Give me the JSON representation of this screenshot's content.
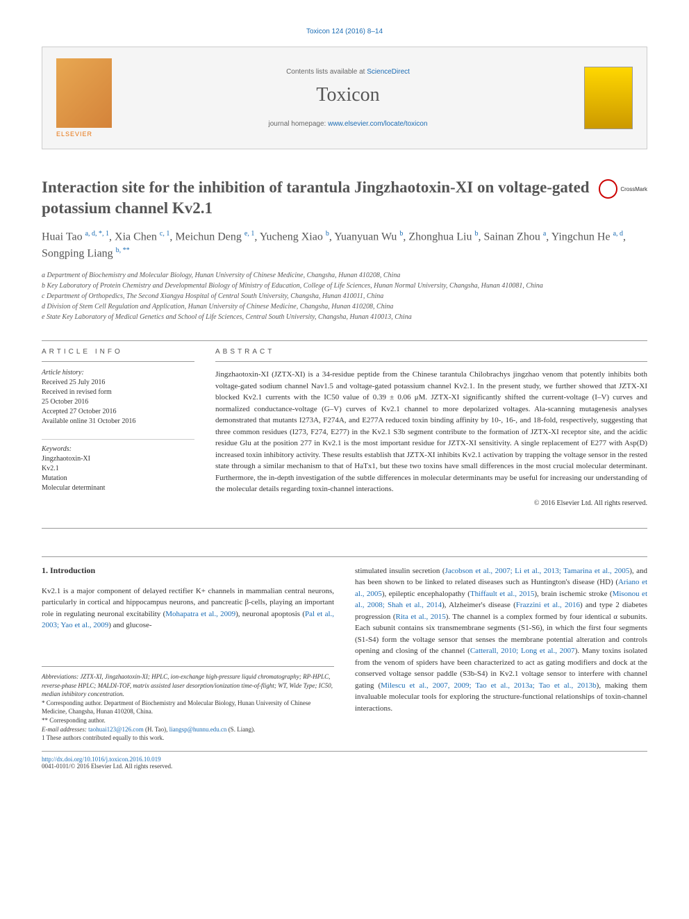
{
  "colors": {
    "link": "#1a6bb3",
    "text": "#333333",
    "heading": "#555555",
    "border": "#999999",
    "elsevier": "#e8730d",
    "background": "#ffffff",
    "banner_bg": "#f5f5f5"
  },
  "typography": {
    "body_font": "Georgia, 'Times New Roman', serif",
    "sans_font": "Arial, sans-serif",
    "title_size": 23,
    "journal_size": 28,
    "body_size": 11,
    "small_size": 10,
    "footnote_size": 9
  },
  "header": {
    "citation": "Toxicon 124 (2016) 8–14",
    "contents_prefix": "Contents lists available at ",
    "contents_link": "ScienceDirect",
    "journal_name": "Toxicon",
    "homepage_prefix": "journal homepage: ",
    "homepage_link": "www.elsevier.com/locate/toxicon",
    "publisher_label": "ELSEVIER"
  },
  "article": {
    "title": "Interaction site for the inhibition of tarantula Jingzhaotoxin-XI on voltage-gated potassium channel Kv2.1",
    "crossmark": "CrossMark",
    "authors_html": "Huai Tao <span class='sup'>a, d, *, 1</span>, Xia Chen <span class='sup'>c, 1</span>, Meichun Deng <span class='sup'>e, 1</span>, Yucheng Xiao <span class='sup'>b</span>, Yuanyuan Wu <span class='sup'>b</span>, Zhonghua Liu <span class='sup'>b</span>, Sainan Zhou <span class='sup'>a</span>, Yingchun He <span class='sup'>a, d</span>, Songping Liang <span class='sup'>b, **</span>",
    "affiliations": [
      "a Department of Biochemistry and Molecular Biology, Hunan University of Chinese Medicine, Changsha, Hunan 410208, China",
      "b Key Laboratory of Protein Chemistry and Developmental Biology of Ministry of Education, College of Life Sciences, Hunan Normal University, Changsha, Hunan 410081, China",
      "c Department of Orthopedics, The Second Xiangya Hospital of Central South University, Changsha, Hunan 410011, China",
      "d Division of Stem Cell Regulation and Application, Hunan University of Chinese Medicine, Changsha, Hunan 410208, China",
      "e State Key Laboratory of Medical Genetics and School of Life Sciences, Central South University, Changsha, Hunan 410013, China"
    ]
  },
  "info": {
    "article_info_header": "ARTICLE INFO",
    "history_label": "Article history:",
    "history": [
      "Received 25 July 2016",
      "Received in revised form",
      "25 October 2016",
      "Accepted 27 October 2016",
      "Available online 31 October 2016"
    ],
    "keywords_label": "Keywords:",
    "keywords": [
      "Jingzhaotoxin-XI",
      "Kv2.1",
      "Mutation",
      "Molecular determinant"
    ]
  },
  "abstract": {
    "header": "ABSTRACT",
    "text": "Jingzhaotoxin-XI (JZTX-XI) is a 34-residue peptide from the Chinese tarantula Chilobrachys jingzhao venom that potently inhibits both voltage-gated sodium channel Nav1.5 and voltage-gated potassium channel Kv2.1. In the present study, we further showed that JZTX-XI blocked Kv2.1 currents with the IC50 value of 0.39 ± 0.06 μM. JZTX-XI significantly shifted the current-voltage (I–V) curves and normalized conductance-voltage (G–V) curves of Kv2.1 channel to more depolarized voltages. Ala-scanning mutagenesis analyses demonstrated that mutants I273A, F274A, and E277A reduced toxin binding affinity by 10-, 16-, and 18-fold, respectively, suggesting that three common residues (I273, F274, E277) in the Kv2.1 S3b segment contribute to the formation of JZTX-XI receptor site, and the acidic residue Glu at the position 277 in Kv2.1 is the most important residue for JZTX-XI sensitivity. A single replacement of E277 with Asp(D) increased toxin inhibitory activity. These results establish that JZTX-XI inhibits Kv2.1 activation by trapping the voltage sensor in the rested state through a similar mechanism to that of HaTx1, but these two toxins have small differences in the most crucial molecular determinant. Furthermore, the in-depth investigation of the subtle differences in molecular determinants may be useful for increasing our understanding of the molecular details regarding toxin-channel interactions.",
    "copyright": "© 2016 Elsevier Ltd. All rights reserved."
  },
  "body": {
    "section_title": "1. Introduction",
    "col1": "Kv2.1 is a major component of delayed rectifier K+ channels in mammalian central neurons, particularly in cortical and hippocampus neurons, and pancreatic β-cells, playing an important role in regulating neuronal excitability (<span class='ref'>Mohapatra et al., 2009</span>), neuronal apoptosis (<span class='ref'>Pal et al., 2003; Yao et al., 2009</span>) and glucose-",
    "col2": "stimulated insulin secretion (<span class='ref'>Jacobson et al., 2007; Li et al., 2013; Tamarina et al., 2005</span>), and has been shown to be linked to related diseases such as Huntington's disease (HD) (<span class='ref'>Ariano et al., 2005</span>), epileptic encephalopathy (<span class='ref'>Thiffault et al., 2015</span>), brain ischemic stroke (<span class='ref'>Misonou et al., 2008; Shah et al., 2014</span>), Alzheimer's disease (<span class='ref'>Frazzini et al., 2016</span>) and type 2 diabetes progression (<span class='ref'>Rita et al., 2015</span>). The channel is a complex formed by four identical α subunits. Each subunit contains six transmembrane segments (S1-S6), in which the first four segments (S1-S4) form the voltage sensor that senses the membrane potential alteration and controls opening and closing of the channel (<span class='ref'>Catterall, 2010; Long et al., 2007</span>). Many toxins isolated from the venom of spiders have been characterized to act as gating modifiers and dock at the conserved voltage sensor paddle (S3b-S4) in Kv2.1 voltage sensor to interfere with channel gating (<span class='ref'>Milescu et al., 2007, 2009; Tao et al., 2013a; Tao et al., 2013b</span>), making them invaluable molecular tools for exploring the structure-functional relationships of toxin-channel interactions."
  },
  "footnotes": {
    "abbreviations": "Abbreviations: JZTX-XI, Jingzhaotoxin-XI; HPLC, ion-exchange high-pressure liquid chromatography; RP-HPLC, reverse-phase HPLC; MALDI-TOF, matrix assisted laser desorption/ionization time-of-flight; WT, Wide Type; IC50, median inhibitory concentration.",
    "corr1": "* Corresponding author. Department of Biochemistry and Molecular Biology, Hunan University of Chinese Medicine, Changsha, Hunan 410208, China.",
    "corr2": "** Corresponding author.",
    "email_label": "E-mail addresses:",
    "email1": "taohuai123@126.com",
    "email1_who": "(H. Tao),",
    "email2": "liangsp@hunnu.edu.cn",
    "email2_who": "(S. Liang).",
    "equal": "1 These authors contributed equally to this work."
  },
  "footer": {
    "doi": "http://dx.doi.org/10.1016/j.toxicon.2016.10.019",
    "issn": "0041-0101/© 2016 Elsevier Ltd. All rights reserved."
  }
}
